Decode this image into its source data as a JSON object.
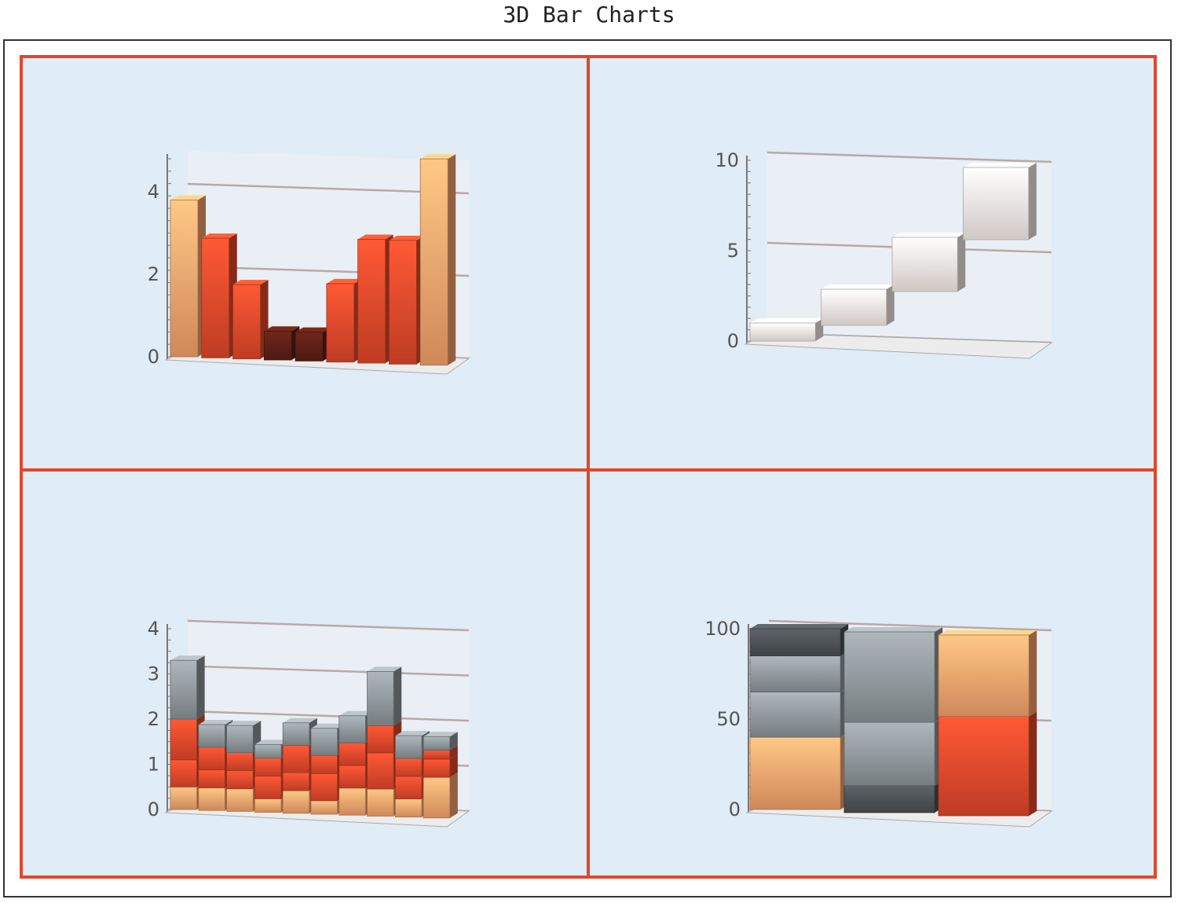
{
  "title": "3D Bar Charts",
  "colors": {
    "panel_bg": "#e0ecf6",
    "frame": "#e0472a",
    "orange_light": "#f6dfd0",
    "orange_mid": "#f4a06a",
    "orange_dark": "#e0472a",
    "brown": "#5a1e15",
    "gray_light": "#d8d0cc",
    "gray_mid": "#8b9396",
    "gray_dark": "#4a4f52",
    "white_box": "#f3ebe7"
  },
  "chart_data": [
    {
      "type": "bar",
      "view": "3d",
      "series": [
        {
          "values": [
            3.8,
            2.9,
            1.8,
            0.7,
            0.7,
            1.9,
            3.0,
            3.0,
            5.0
          ]
        }
      ],
      "ylim": [
        0,
        4.8
      ],
      "yticks": [
        "0",
        "2",
        "4"
      ],
      "grid": true
    },
    {
      "type": "bar",
      "view": "3d-floating",
      "series": [
        {
          "values": [
            [
              0,
              1
            ],
            [
              1,
              3
            ],
            [
              3,
              6
            ],
            [
              6,
              10
            ]
          ]
        }
      ],
      "ylim": [
        0,
        10
      ],
      "yticks": [
        "0",
        "5",
        "10"
      ],
      "grid": true
    },
    {
      "type": "bar",
      "view": "3d-stacked",
      "series": [
        {
          "values": [
            0.5,
            0.5,
            0.5,
            0.3,
            0.5,
            0.3,
            0.6,
            0.6,
            0.4,
            0.9
          ]
        },
        {
          "values": [
            0.6,
            0.4,
            0.4,
            0.5,
            0.4,
            0.6,
            0.5,
            0.8,
            0.5,
            0.4
          ]
        },
        {
          "values": [
            0.9,
            0.5,
            0.4,
            0.4,
            0.6,
            0.4,
            0.5,
            0.6,
            0.4,
            0.2
          ]
        },
        {
          "values": [
            1.3,
            0.5,
            0.6,
            0.3,
            0.5,
            0.6,
            0.6,
            1.2,
            0.5,
            0.3
          ]
        }
      ],
      "ylim": [
        0,
        4
      ],
      "yticks": [
        "0",
        "1",
        "2",
        "3",
        "4"
      ],
      "grid": true
    },
    {
      "type": "bar",
      "view": "3d-stacked-percent",
      "series": [
        {
          "values": [
            40,
            15,
            55
          ]
        },
        {
          "values": [
            25,
            35,
            45
          ]
        },
        {
          "values": [
            20,
            50,
            0
          ]
        },
        {
          "values": [
            15,
            0,
            0
          ]
        }
      ],
      "ylim": [
        0,
        100
      ],
      "yticks": [
        "0",
        "50",
        "100"
      ],
      "grid": true
    }
  ]
}
